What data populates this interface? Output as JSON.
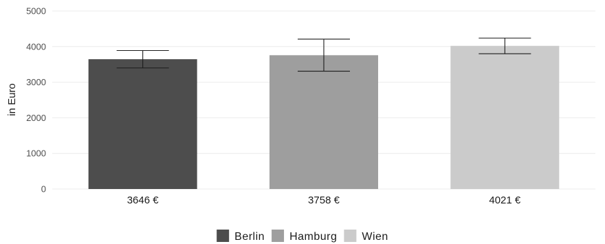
{
  "chart_data": {
    "type": "bar",
    "categories": [
      "Berlin",
      "Hamburg",
      "Wien"
    ],
    "values": [
      3646,
      3758,
      4021
    ],
    "error_bars": [
      {
        "low": 3400,
        "high": 3890
      },
      {
        "low": 3310,
        "high": 4210
      },
      {
        "low": 3800,
        "high": 4240
      }
    ],
    "value_labels": [
      "3646 €",
      "3758 €",
      "4021 €"
    ],
    "colors": [
      "#4d4d4d",
      "#9e9e9e",
      "#cbcbcb"
    ],
    "ylabel": "in Euro",
    "xlabel": "",
    "ylim": [
      0,
      5000
    ],
    "yticks": [
      0,
      1000,
      2000,
      3000,
      4000,
      5000
    ],
    "grid": true,
    "legend": {
      "position": "bottom",
      "entries": [
        "Berlin",
        "Hamburg",
        "Wien"
      ]
    }
  }
}
